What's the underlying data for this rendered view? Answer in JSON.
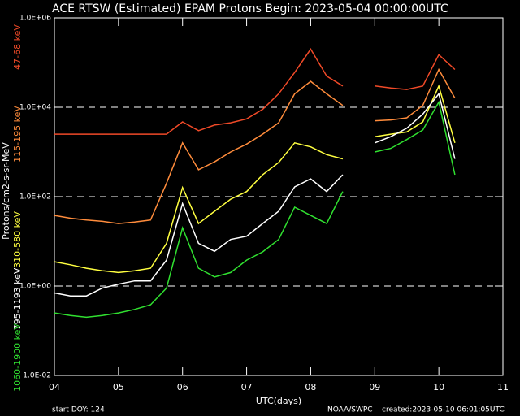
{
  "chart_data": {
    "type": "line",
    "title": "ACE RTSW (Estimated) EPAM Protons     Begin: 2023-05-04 00:00:00UTC",
    "x_label": "UTC(days)",
    "y_label": "Protons/cm2-s-sr-MeV",
    "yscale": "log",
    "grid": true,
    "xlim": [
      4,
      11
    ],
    "ylim": [
      0.01,
      1000000
    ],
    "xticks": [
      {
        "value": 4,
        "label": "04"
      },
      {
        "value": 5,
        "label": "05"
      },
      {
        "value": 6,
        "label": "06"
      },
      {
        "value": 7,
        "label": "07"
      },
      {
        "value": 8,
        "label": "08"
      },
      {
        "value": 9,
        "label": "09"
      },
      {
        "value": 10,
        "label": "10"
      },
      {
        "value": 11,
        "label": "11"
      }
    ],
    "yticks": [
      {
        "value": 0.01,
        "label": "1.0E-02"
      },
      {
        "value": 1,
        "label": "1.0E+00"
      },
      {
        "value": 100,
        "label": "1.0E+02"
      },
      {
        "value": 10000,
        "label": "1.0E+04"
      },
      {
        "value": 1000000,
        "label": "1.0E+06"
      }
    ],
    "x": [
      4,
      4.25,
      4.5,
      4.75,
      5,
      5.25,
      5.5,
      5.75,
      6,
      6.25,
      6.5,
      6.75,
      7,
      7.25,
      7.5,
      7.75,
      8,
      8.25,
      8.5,
      8.75,
      9,
      9.25,
      9.5,
      9.75,
      10,
      10.25
    ],
    "series": [
      {
        "name": "47-68 keV",
        "color": "#f04a28",
        "values": [
          2500,
          2500,
          2500,
          2500,
          2500,
          2500,
          2500,
          2500,
          4700,
          3000,
          4000,
          4500,
          5500,
          9000,
          20000,
          60000,
          200000,
          50000,
          30000,
          null,
          30000,
          27000,
          25000,
          30000,
          150000,
          70000
        ]
      },
      {
        "name": "115-195 keV",
        "color": "#ff8c3c",
        "values": [
          38,
          33,
          30,
          28,
          25,
          27,
          30,
          200,
          1600,
          400,
          600,
          1000,
          1500,
          2500,
          4500,
          20000,
          38000,
          20000,
          11000,
          null,
          5000,
          5200,
          5800,
          11000,
          70000,
          16000
        ]
      },
      {
        "name": "310-580 keV",
        "color": "#ffff40",
        "values": [
          3.5,
          3,
          2.5,
          2.2,
          2,
          2.2,
          2.5,
          9,
          160,
          25,
          47,
          88,
          130,
          310,
          580,
          1600,
          1300,
          870,
          700,
          null,
          2200,
          2500,
          2800,
          4700,
          30000,
          1600
        ]
      },
      {
        "name": "795-1193 keV",
        "color": "#ffffff",
        "values": [
          0.7,
          0.6,
          0.6,
          0.9,
          1.1,
          1.3,
          1.3,
          3.8,
          70,
          9,
          6,
          11,
          13,
          25,
          47,
          165,
          250,
          130,
          310,
          null,
          1600,
          2200,
          3400,
          7000,
          20000,
          700
        ]
      },
      {
        "name": "1060-1900 keV",
        "color": "#30e030",
        "values": [
          0.25,
          0.22,
          0.2,
          0.22,
          0.25,
          0.3,
          0.38,
          0.9,
          20,
          2.5,
          1.6,
          2,
          3.8,
          5.8,
          11,
          58,
          38,
          25,
          130,
          null,
          1000,
          1200,
          1900,
          3100,
          13000,
          310
        ]
      }
    ],
    "annotations": [
      "start DOY:  124",
      "NOAA/SWPC",
      "created:2023-05-10 06:01:05UTC"
    ]
  }
}
